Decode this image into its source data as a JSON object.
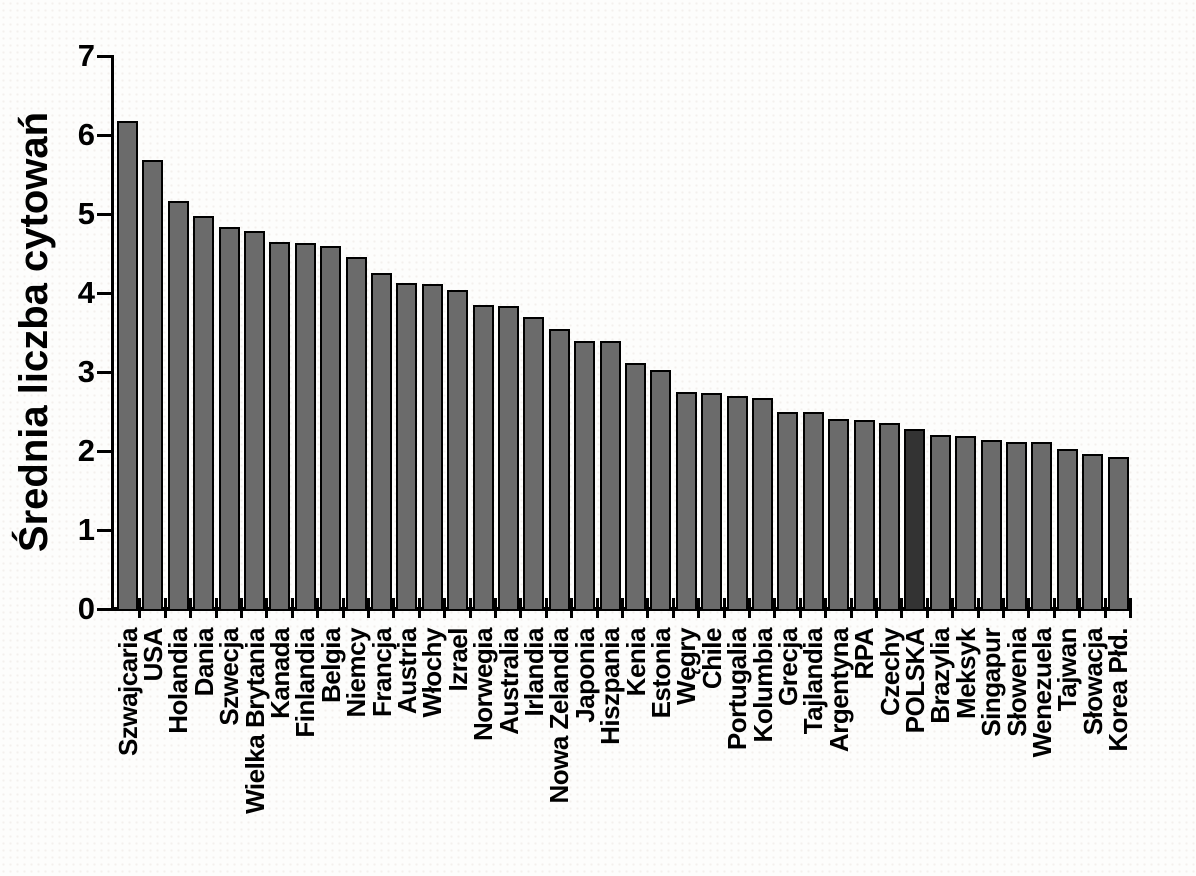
{
  "chart_data": {
    "type": "bar",
    "title": "",
    "xlabel": "",
    "ylabel": "Średnia liczba cytowań",
    "ylim": [
      0,
      7
    ],
    "yticks": [
      "0",
      "1",
      "2",
      "3",
      "4",
      "5",
      "6",
      "7"
    ],
    "grid": false,
    "legend": false,
    "categories": [
      "Szwajcaria",
      "USA",
      "Holandia",
      "Dania",
      "Szwecja",
      "Wielka Brytania",
      "Kanada",
      "Finlandia",
      "Belgia",
      "Niemcy",
      "Francja",
      "Austria",
      "Włochy",
      "Izrael",
      "Norwegia",
      "Australia",
      "Irlandia",
      "Nowa Zelandia",
      "Japonia",
      "Hiszpania",
      "Kenia",
      "Estonia",
      "Węgry",
      "Chile",
      "Portugalia",
      "Kolumbia",
      "Grecja",
      "Tajlandia",
      "Argentyna",
      "RPA",
      "Czechy",
      "POLSKA",
      "Brazylia",
      "Meksyk",
      "Singapur",
      "Słowenia",
      "Wenezuela",
      "Tajwan",
      "Słowacja",
      "Korea Płd."
    ],
    "values": [
      6.18,
      5.68,
      5.17,
      4.97,
      4.84,
      4.78,
      4.65,
      4.63,
      4.6,
      4.46,
      4.25,
      4.13,
      4.11,
      4.04,
      3.85,
      3.84,
      3.7,
      3.54,
      3.39,
      3.39,
      3.12,
      3.03,
      2.75,
      2.74,
      2.69,
      2.67,
      2.5,
      2.5,
      2.4,
      2.39,
      2.35,
      2.28,
      2.2,
      2.19,
      2.14,
      2.12,
      2.11,
      2.02,
      1.96,
      1.93
    ],
    "highlight_category": "POLSKA",
    "bar_color": "#6b6b6b",
    "highlight_color": "#333333",
    "axis_color": "#000000",
    "background_color": "#fdfdfc"
  }
}
